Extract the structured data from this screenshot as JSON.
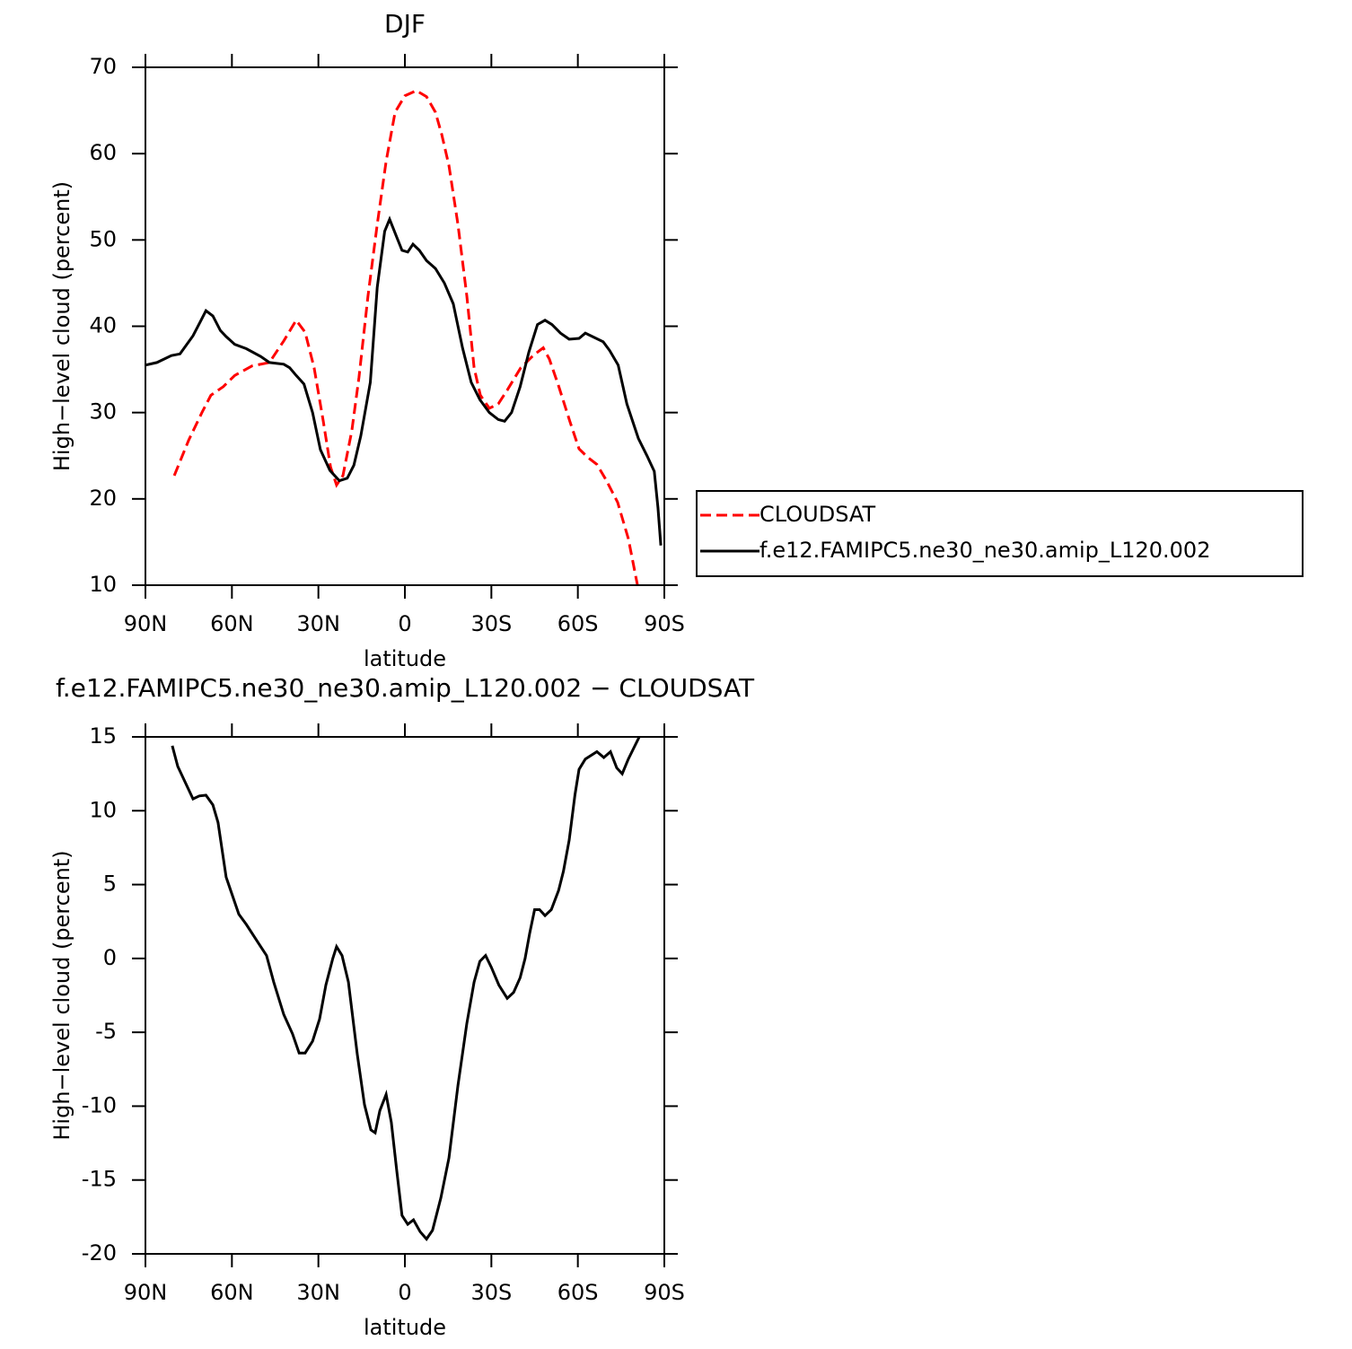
{
  "chart_data": [
    {
      "type": "line",
      "title": "DJF",
      "x_label": "latitude",
      "y_label": "High−level cloud (percent)",
      "xlim": [
        90,
        -90
      ],
      "xticks": [
        {
          "value": 90,
          "label": "90N"
        },
        {
          "value": 60,
          "label": "60N"
        },
        {
          "value": 30,
          "label": "30N"
        },
        0,
        {
          "value": -30,
          "label": "30S"
        },
        {
          "value": -60,
          "label": "60S"
        },
        {
          "value": -90,
          "label": "90S"
        }
      ],
      "ylim": [
        10,
        70
      ],
      "yticks": [
        10,
        20,
        30,
        40,
        50,
        60,
        70
      ],
      "legend": "right",
      "series": [
        {
          "name": "CLOUDSAT",
          "color": "#ff0000",
          "linestyle": "dashed",
          "x": [
            80,
            75,
            70.4,
            67.3,
            63,
            59,
            53,
            47,
            42,
            37.7,
            34.6,
            31.5,
            28.3,
            25.8,
            23.7,
            21.5,
            18.4,
            15.9,
            12.8,
            9.6,
            6.5,
            3.4,
            0,
            -4,
            -7.5,
            -10.6,
            -12.8,
            -15.3,
            -18.4,
            -21.5,
            -24,
            -26.2,
            -29.3,
            -32.4,
            -35.5,
            -40.2,
            -44.8,
            -48,
            -50.1,
            -53.3,
            -57.3,
            -60.4,
            -63.5,
            -66.6,
            -69.8,
            -73.8,
            -77.5,
            -80.7
          ],
          "values": [
            22.7,
            26.8,
            30,
            32,
            33,
            34.3,
            35.4,
            35.8,
            38.3,
            40.7,
            39.3,
            35.2,
            29,
            23.7,
            21.6,
            22.7,
            27.9,
            34.1,
            43.5,
            51.8,
            59.1,
            64.8,
            66.7,
            67.3,
            66.6,
            64.8,
            62.2,
            58.6,
            51.8,
            43.5,
            35.2,
            32,
            30.5,
            31,
            32.6,
            35.2,
            36.7,
            37.5,
            36.2,
            33.1,
            28.9,
            25.8,
            24.8,
            24,
            22.2,
            19.6,
            15.4,
            10
          ]
        },
        {
          "name": "f.e12.FAMIPC5.ne30_ne30.amip_L120.002",
          "color": "#000000",
          "linestyle": "solid",
          "x": [
            90,
            86,
            81,
            78,
            73.5,
            71,
            69,
            66.6,
            64,
            62,
            59,
            55,
            50,
            47,
            42,
            40,
            37.7,
            35,
            32,
            29.3,
            26,
            22.7,
            20,
            17.7,
            15.3,
            12,
            9.6,
            7,
            5.3,
            2.8,
            1,
            -1,
            -2.8,
            -5,
            -7.5,
            -10.6,
            -13.7,
            -16.8,
            -20,
            -23,
            -26,
            -29.3,
            -32.4,
            -34.6,
            -37,
            -40,
            -43,
            -46,
            -48.6,
            -51,
            -54,
            -57,
            -60.4,
            -62.6,
            -65.7,
            -68.8,
            -71,
            -74,
            -77,
            -81,
            -84,
            -86.5,
            -87.8,
            -88.8
          ],
          "values": [
            35.5,
            35.8,
            36.6,
            36.8,
            38.9,
            40.5,
            41.8,
            41.2,
            39.5,
            38.8,
            37.9,
            37.4,
            36.5,
            35.8,
            35.6,
            35.2,
            34.3,
            33.3,
            30,
            25.7,
            23.3,
            22.1,
            22.4,
            23.9,
            27.3,
            33.5,
            44.5,
            51,
            52.4,
            50.3,
            48.8,
            48.6,
            49.5,
            48.8,
            47.6,
            46.7,
            45,
            42.6,
            37.5,
            33.5,
            31.5,
            30,
            29.2,
            29,
            30,
            33,
            37,
            40.2,
            40.7,
            40.2,
            39.2,
            38.5,
            38.6,
            39.2,
            38.7,
            38.2,
            37.2,
            35.5,
            31,
            27,
            25,
            23.2,
            19,
            14.6
          ]
        }
      ]
    },
    {
      "type": "line",
      "title": "f.e12.FAMIPC5.ne30_ne30.amip_L120.002 − CLOUDSAT",
      "x_label": "latitude",
      "y_label": "High−level cloud (percent)",
      "xlim": [
        90,
        -90
      ],
      "xticks": [
        {
          "value": 90,
          "label": "90N"
        },
        {
          "value": 60,
          "label": "60N"
        },
        {
          "value": 30,
          "label": "30N"
        },
        0,
        {
          "value": -30,
          "label": "30S"
        },
        {
          "value": -60,
          "label": "60S"
        },
        {
          "value": -90,
          "label": "90S"
        }
      ],
      "ylim": [
        -20,
        15
      ],
      "yticks": [
        -20,
        -15,
        -10,
        -5,
        0,
        5,
        10,
        15
      ],
      "series": [
        {
          "color": "#000000",
          "linestyle": "solid",
          "x": [
            80.7,
            78.8,
            73.5,
            71.3,
            69,
            66.6,
            64.8,
            62,
            57.6,
            55,
            50,
            48,
            45.5,
            42,
            39,
            36.7,
            34.6,
            32,
            29.6,
            27.4,
            25,
            23.7,
            21.8,
            19.6,
            16.5,
            14,
            11.8,
            10.3,
            8.7,
            6.5,
            4.7,
            2.8,
            1,
            -1,
            -3,
            -5.3,
            -7.5,
            -9.6,
            -12.5,
            -15.3,
            -18.4,
            -21.5,
            -24,
            -26,
            -28,
            -30,
            -32.6,
            -35.5,
            -37.7,
            -40,
            -41.7,
            -43.3,
            -45,
            -46.7,
            -48.6,
            -50.8,
            -53.3,
            -55,
            -57,
            -59,
            -60.4,
            -62.6,
            -66.6,
            -69,
            -71.3,
            -73.5,
            -75.4,
            -77.5,
            -81.3
          ],
          "values": [
            14.4,
            13,
            10.8,
            11,
            11.05,
            10.4,
            9.2,
            5.5,
            3,
            2.3,
            0.8,
            0.2,
            -1.6,
            -3.8,
            -5.1,
            -6.4,
            -6.4,
            -5.6,
            -4.1,
            -1.8,
            0,
            0.8,
            0.2,
            -1.6,
            -6.5,
            -9.9,
            -11.6,
            -11.8,
            -10.3,
            -9.2,
            -11.1,
            -14.4,
            -17.4,
            -18,
            -17.7,
            -18.5,
            -19,
            -18.4,
            -16.2,
            -13.5,
            -8.6,
            -4.4,
            -1.6,
            -0.2,
            0.2,
            -0.6,
            -1.8,
            -2.7,
            -2.3,
            -1.3,
            0,
            1.7,
            3.3,
            3.3,
            2.9,
            3.3,
            4.6,
            5.9,
            8,
            11.1,
            12.8,
            13.5,
            14,
            13.6,
            14,
            12.9,
            12.5,
            13.5,
            15
          ]
        }
      ]
    }
  ]
}
